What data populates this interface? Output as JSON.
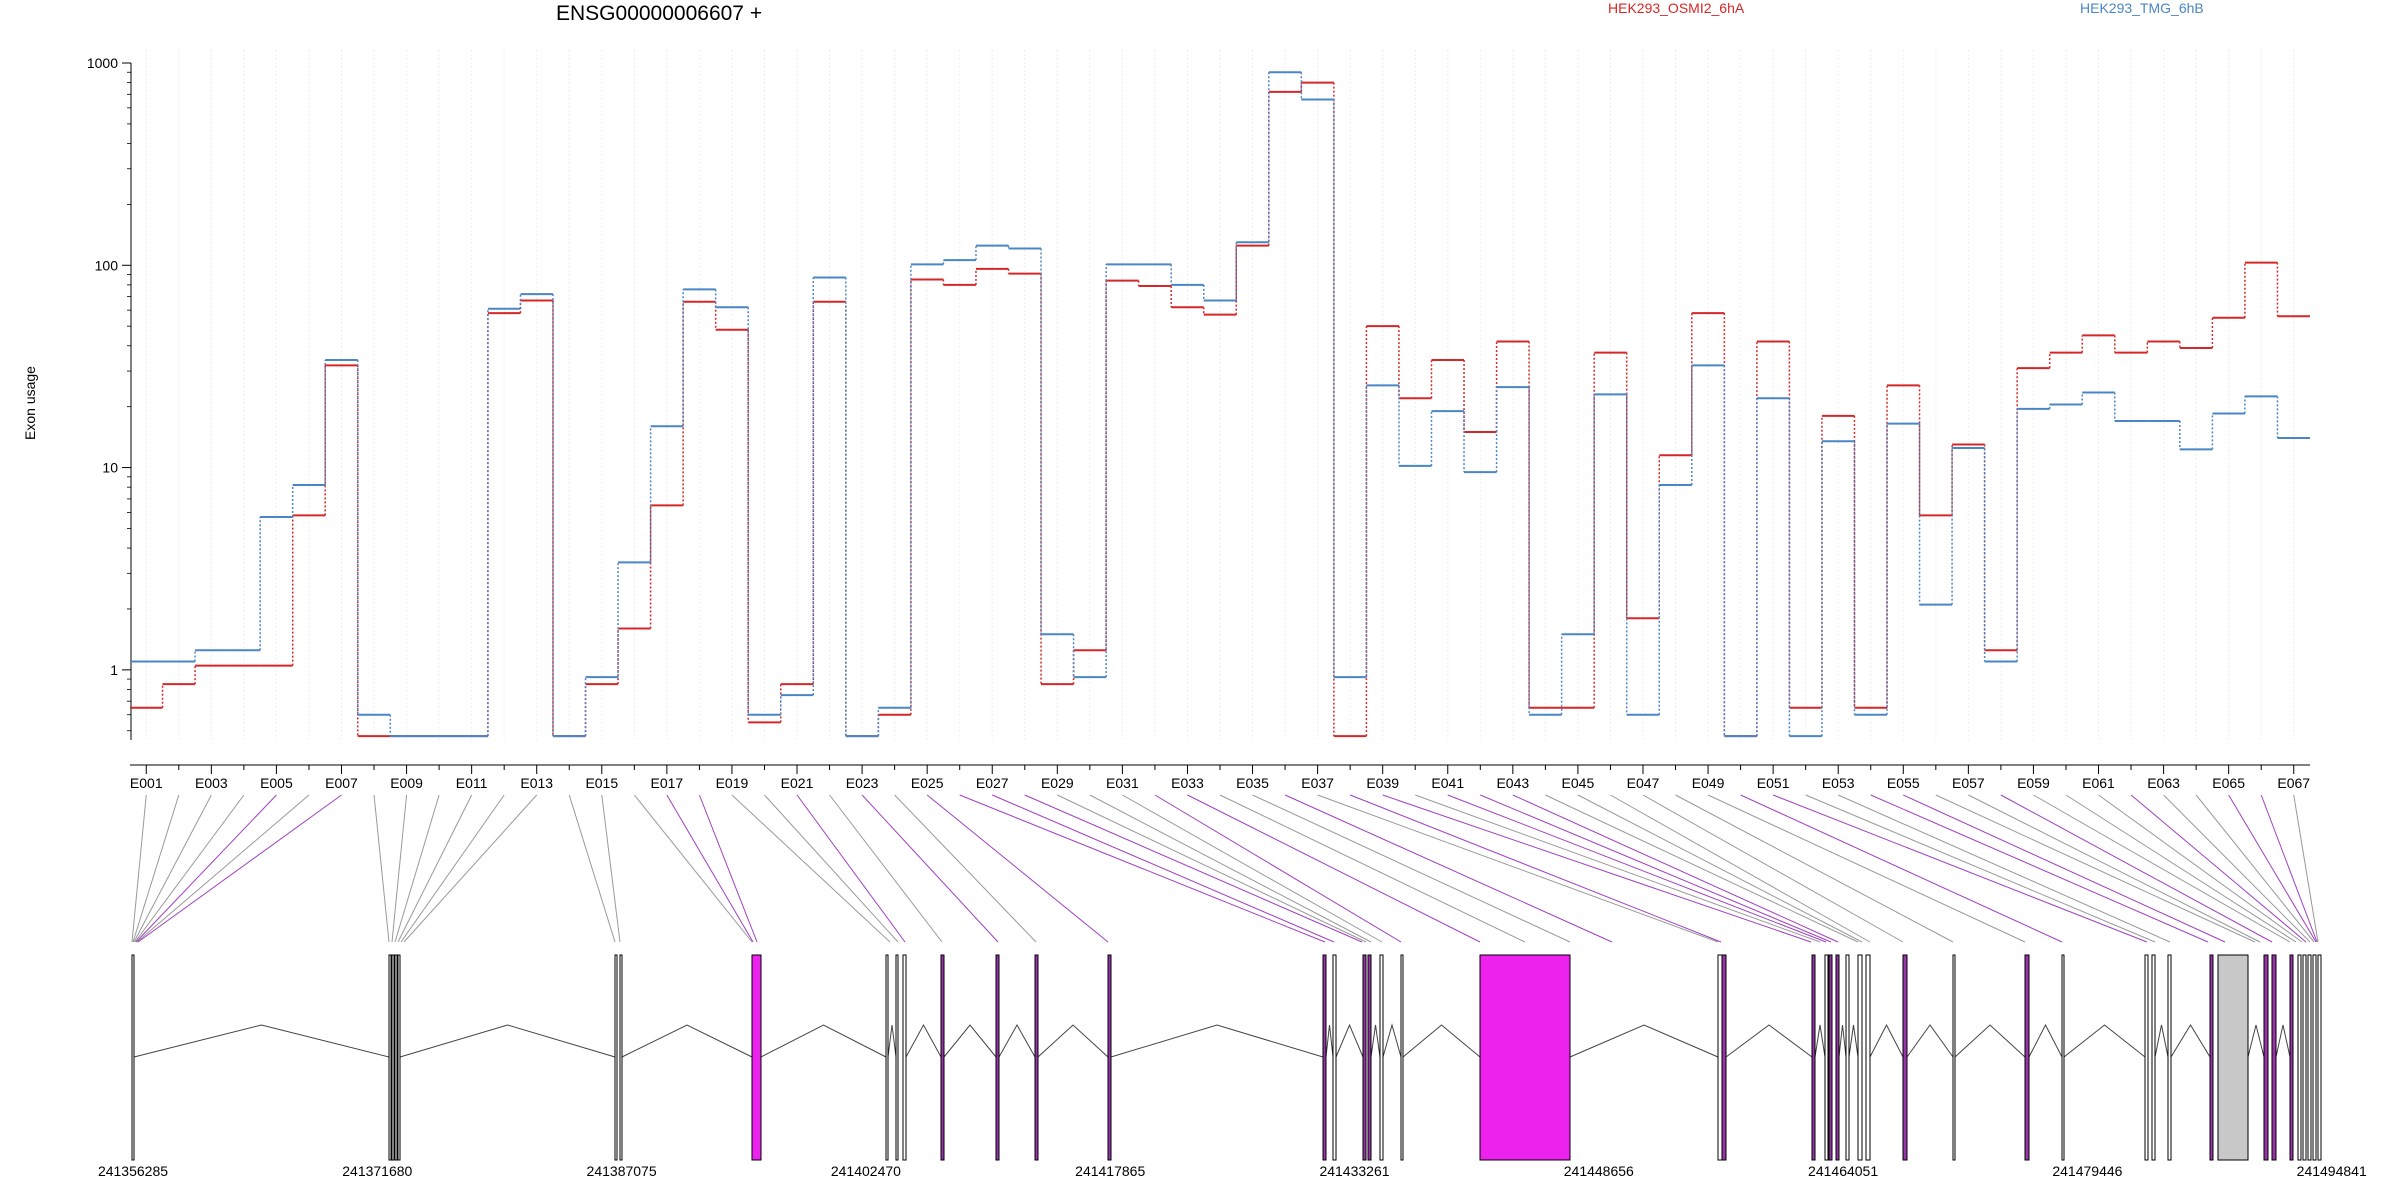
{
  "chart_data": {
    "type": "line",
    "title": "ENSG00000006607 +",
    "ylabel": "Exon usage",
    "y_scale": "log",
    "ylim": [
      0.45,
      1000
    ],
    "y_ticks": [
      1,
      10,
      100,
      1000
    ],
    "y_tick_labels": [
      "1",
      "10",
      "100",
      "1000"
    ],
    "legend_position": "top",
    "exons": [
      "E001",
      "E002",
      "E003",
      "E004",
      "E005",
      "E006",
      "E007",
      "E008",
      "E009",
      "E010",
      "E011",
      "E012",
      "E013",
      "E014",
      "E015",
      "E016",
      "E017",
      "E018",
      "E019",
      "E020",
      "E021",
      "E022",
      "E023",
      "E024",
      "E025",
      "E026",
      "E027",
      "E028",
      "E029",
      "E030",
      "E031",
      "E032",
      "E033",
      "E034",
      "E035",
      "E036",
      "E037",
      "E038",
      "E039",
      "E040",
      "E041",
      "E042",
      "E043",
      "E044",
      "E045",
      "E046",
      "E047",
      "E048",
      "E049",
      "E050",
      "E051",
      "E052",
      "E053",
      "E054",
      "E055",
      "E056",
      "E057",
      "E058",
      "E059",
      "E060",
      "E061",
      "E062",
      "E063",
      "E064",
      "E065",
      "E066",
      "E067"
    ],
    "series": [
      {
        "name": "HEK293_OSMI2_6hA",
        "color": "#d62728",
        "values": [
          0.65,
          0.85,
          1.05,
          1.05,
          1.05,
          5.8,
          32,
          0.47,
          0.47,
          0.47,
          0.47,
          58,
          67,
          0.47,
          0.85,
          1.6,
          6.5,
          66,
          48,
          0.55,
          0.85,
          66,
          0.47,
          0.6,
          85,
          80,
          96,
          91,
          0.85,
          1.25,
          84,
          79,
          62,
          57,
          125,
          720,
          800,
          0.47,
          50,
          22,
          34,
          15,
          42,
          0.65,
          0.65,
          37,
          1.8,
          11.5,
          58,
          0.47,
          42,
          0.65,
          18,
          0.65,
          25.5,
          5.8,
          13,
          1.25,
          31,
          37,
          45,
          37,
          42,
          39,
          55,
          103,
          56
        ]
      },
      {
        "name": "HEK293_TMG_6hB",
        "color": "#4a86c5",
        "values": [
          1.1,
          1.1,
          1.25,
          1.25,
          5.7,
          8.2,
          34,
          0.6,
          0.47,
          0.47,
          0.47,
          61,
          72,
          0.47,
          0.92,
          3.4,
          16,
          76,
          62,
          0.6,
          0.75,
          87,
          0.47,
          0.65,
          101,
          106,
          125,
          121,
          1.5,
          0.92,
          101,
          101,
          80,
          67,
          130,
          900,
          660,
          0.92,
          25.5,
          10.2,
          19,
          9.5,
          25,
          0.6,
          1.5,
          23,
          0.6,
          8.2,
          32,
          0.47,
          22,
          0.47,
          13.5,
          0.6,
          16.5,
          2.1,
          12.5,
          1.1,
          19.5,
          20.5,
          23.5,
          17,
          17,
          12.3,
          18.5,
          22.5,
          14
        ]
      }
    ],
    "gene_model": {
      "coordinate_labels": [
        "241356285",
        "241371680",
        "241387075",
        "241402470",
        "241417865",
        "241433261",
        "241448656",
        "241464051",
        "241479446",
        "241494841"
      ],
      "transcript_color": "#ee22ee",
      "constitutive_color": "#c8c8c8"
    }
  }
}
